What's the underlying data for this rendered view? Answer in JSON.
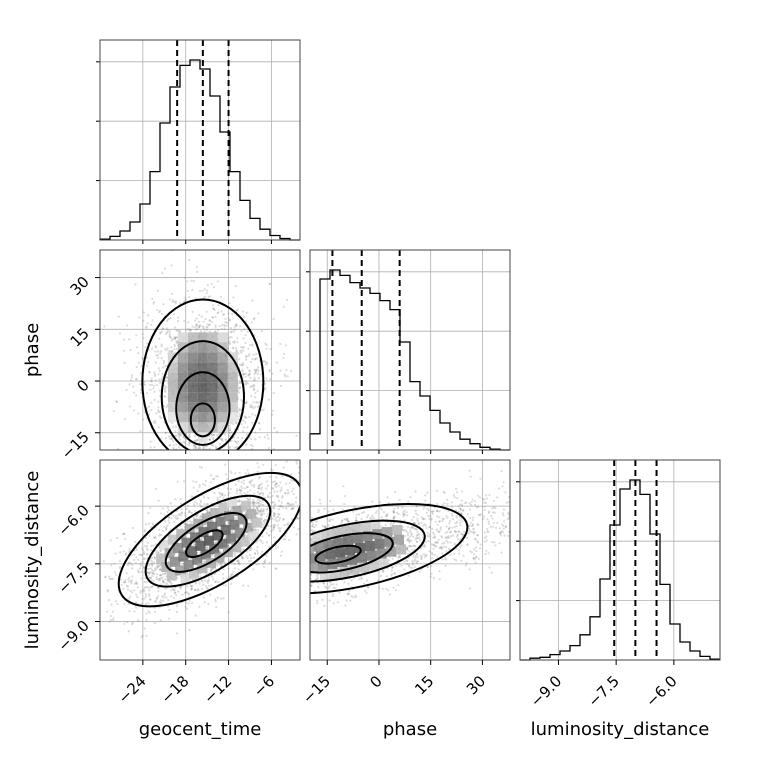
{
  "chart_data": {
    "type": "corner",
    "parameters": [
      "geocent_time",
      "phase",
      "luminosity_distance"
    ],
    "axis_labels": {
      "geocent_time": "geocent_time",
      "phase": "phase",
      "luminosity_distance": "luminosity_distance"
    },
    "ranges": {
      "geocent_time": [
        -30,
        -2
      ],
      "phase": [
        -20,
        38
      ],
      "luminosity_distance": [
        -10.0,
        -4.8
      ]
    },
    "ticks": {
      "geocent_time": {
        "values": [
          -24,
          -18,
          -12,
          -6
        ],
        "labels": [
          "−24",
          "−18",
          "−12",
          "−6"
        ]
      },
      "phase": {
        "values": [
          -15,
          0,
          15,
          30
        ],
        "labels": [
          "−15",
          "0",
          "15",
          "30"
        ]
      },
      "luminosity_distance": {
        "values": [
          -9.0,
          -7.5,
          -6.0
        ],
        "labels": [
          "−9.0",
          "−7.5",
          "−6.0"
        ]
      }
    },
    "grid": true,
    "histograms": {
      "geocent_time": {
        "bin_edges": [
          -30,
          -28.6,
          -27.2,
          -25.8,
          -24.4,
          -23,
          -21.6,
          -20.2,
          -18.8,
          -17.4,
          -16,
          -14.6,
          -13.2,
          -11.8,
          -10.4,
          -9,
          -7.6,
          -6.2,
          -4.8,
          -3.4,
          -2
        ],
        "counts": [
          0.005,
          0.02,
          0.05,
          0.1,
          0.2,
          0.38,
          0.65,
          0.85,
          0.97,
          1.0,
          0.95,
          0.8,
          0.6,
          0.38,
          0.22,
          0.12,
          0.06,
          0.025,
          0.008,
          0.0
        ],
        "quantiles": [
          -19.2,
          -15.6,
          -12.0
        ]
      },
      "phase": {
        "bin_edges": [
          -20,
          -17.1,
          -14.2,
          -11.3,
          -8.4,
          -5.5,
          -2.6,
          0.3,
          3.2,
          6.1,
          9,
          11.9,
          14.8,
          17.7,
          20.6,
          23.5,
          26.4,
          29.3,
          32.2,
          35.1,
          38
        ],
        "counts": [
          0.09,
          0.95,
          1.0,
          0.97,
          0.93,
          0.9,
          0.87,
          0.83,
          0.78,
          0.6,
          0.38,
          0.3,
          0.22,
          0.15,
          0.1,
          0.06,
          0.035,
          0.015,
          0.005,
          0.0
        ],
        "quantiles": [
          -13.5,
          -5.0,
          6.0
        ]
      },
      "luminosity_distance": {
        "bin_edges": [
          -10.0,
          -9.74,
          -9.48,
          -9.22,
          -8.96,
          -8.7,
          -8.44,
          -8.18,
          -7.92,
          -7.66,
          -7.4,
          -7.14,
          -6.88,
          -6.62,
          -6.36,
          -6.1,
          -5.84,
          -5.58,
          -5.32,
          -5.06,
          -4.8
        ],
        "counts": [
          0.0,
          0.01,
          0.015,
          0.03,
          0.05,
          0.08,
          0.14,
          0.24,
          0.45,
          0.75,
          0.95,
          1.0,
          0.92,
          0.7,
          0.42,
          0.2,
          0.1,
          0.05,
          0.02,
          0.005
        ],
        "quantiles": [
          -7.55,
          -7.0,
          -6.45
        ]
      }
    },
    "joint_2d": [
      {
        "x": "geocent_time",
        "y": "phase",
        "peak": {
          "x": -15.6,
          "y": -14.0
        },
        "contour_levels": 4
      },
      {
        "x": "geocent_time",
        "y": "luminosity_distance",
        "peak": {
          "x": -15.6,
          "y": -7.0
        },
        "contour_levels": 4
      },
      {
        "x": "phase",
        "y": "luminosity_distance",
        "peak": {
          "x": -13.0,
          "y": -7.3
        },
        "contour_levels": 4
      }
    ]
  }
}
